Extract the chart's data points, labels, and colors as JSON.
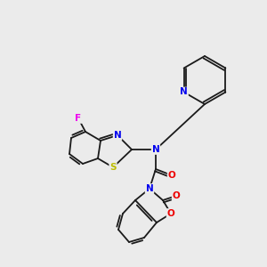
{
  "background_color": "#ebebeb",
  "bond_color": "#1a1a1a",
  "atom_colors": {
    "N": "#0000ee",
    "O": "#ee0000",
    "S": "#bbbb00",
    "F": "#ee00ee",
    "C": "#1a1a1a"
  },
  "figsize": [
    3.0,
    3.0
  ],
  "dpi": 100,
  "lw": 1.3,
  "fontsize": 7.5
}
